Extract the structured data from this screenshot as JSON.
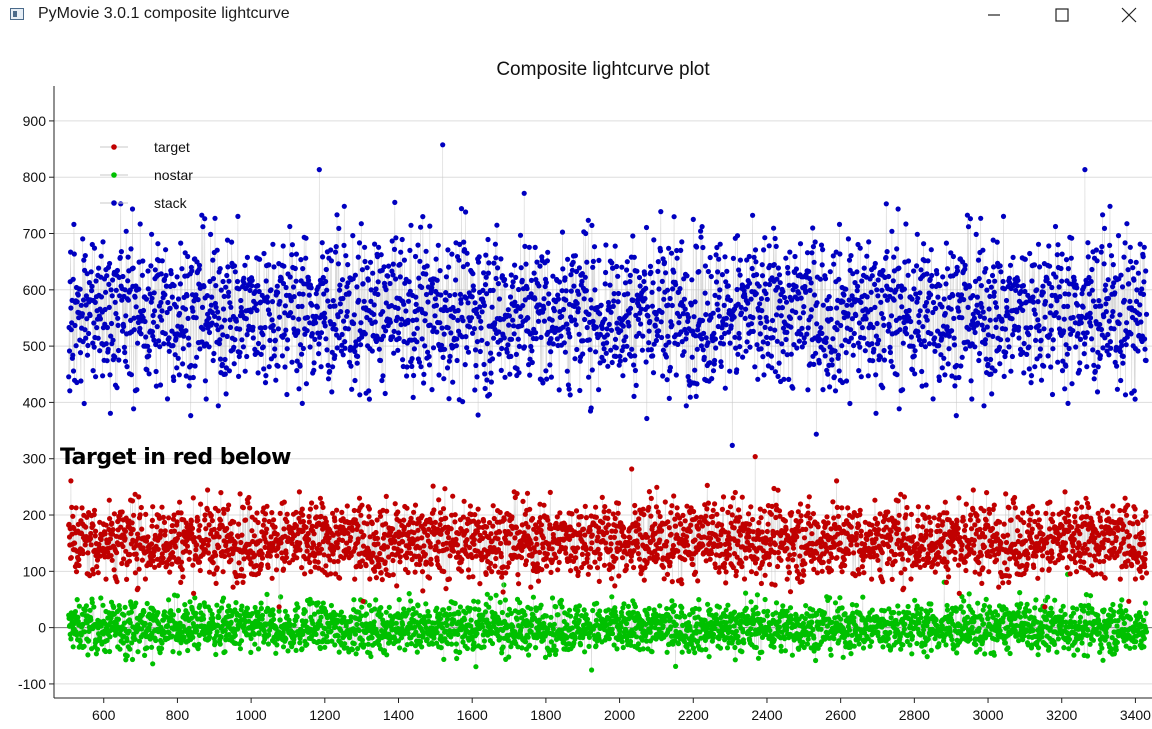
{
  "window": {
    "title": "PyMovie 3.0.1 composite lightcurve",
    "icons": {
      "app": "app-window-icon",
      "minimize": "minimize-icon",
      "maximize": "maximize-icon",
      "close": "close-icon"
    }
  },
  "annotation": "Target in red below",
  "colors": {
    "target": "#c00000",
    "nostar": "#00c000",
    "stack": "#0000c0",
    "line": "#c8c8c8"
  },
  "chart_data": {
    "type": "scatter",
    "title": "Composite lightcurve plot",
    "xlabel": "",
    "ylabel": "",
    "xlim": [
      465,
      3445
    ],
    "ylim": [
      -125,
      962
    ],
    "xticks": [
      600,
      800,
      1000,
      1200,
      1400,
      1600,
      1800,
      2000,
      2200,
      2400,
      2600,
      2800,
      3000,
      3200,
      3400
    ],
    "yticks": [
      -100,
      0,
      100,
      200,
      300,
      400,
      500,
      600,
      700,
      800,
      900
    ],
    "grid": "horizontal",
    "legend_position": "top-left",
    "x_range": [
      505,
      3430
    ],
    "series": [
      {
        "name": "target",
        "mean": 155,
        "spread": 55,
        "min": -75,
        "max": 350
      },
      {
        "name": "nostar",
        "mean": 0,
        "spread": 35,
        "min": -105,
        "max": 135
      },
      {
        "name": "stack",
        "mean": 560,
        "spread": 110,
        "min": 235,
        "max": 910
      }
    ]
  }
}
